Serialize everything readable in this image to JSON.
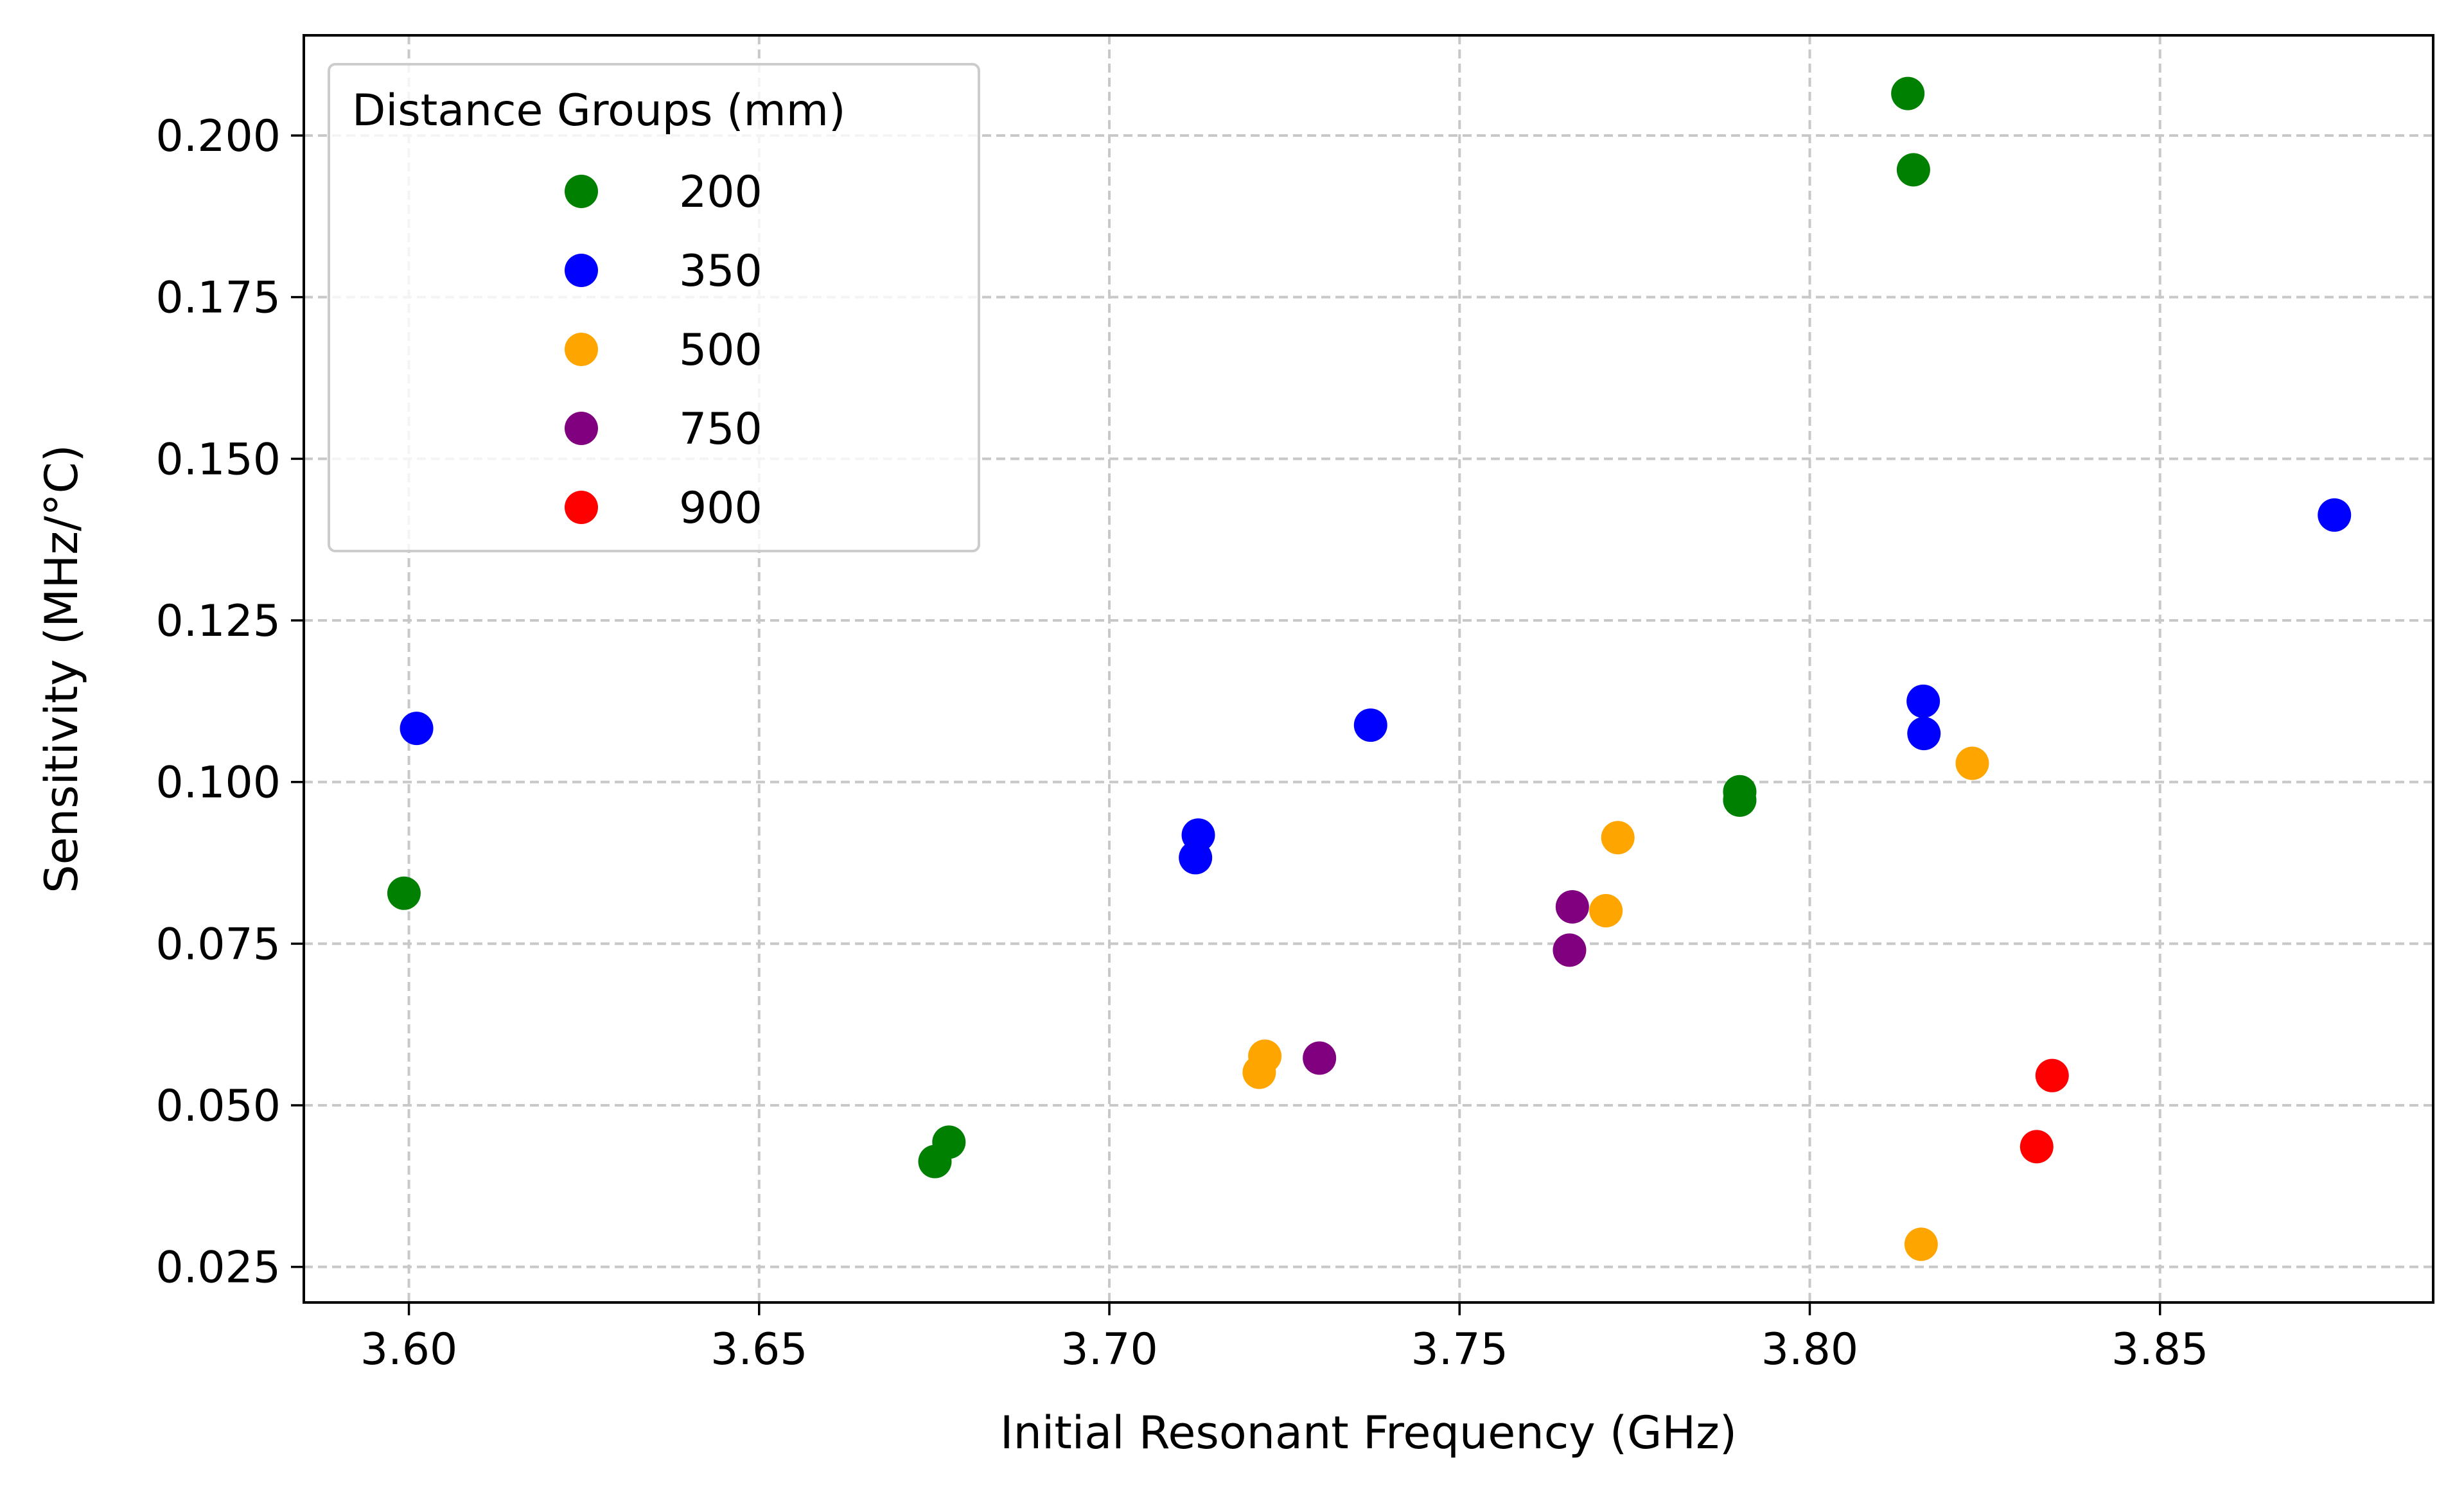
{
  "chart_data": {
    "type": "scatter",
    "xlabel": "Initial Resonant Frequency (GHz)",
    "ylabel": "Sensitivity (MHz/°C)",
    "xlim": [
      3.585,
      3.889
    ],
    "ylim": [
      0.0195,
      0.2155
    ],
    "xticks": [
      3.6,
      3.65,
      3.7,
      3.75,
      3.8,
      3.85
    ],
    "xtick_labels": [
      "3.60",
      "3.65",
      "3.70",
      "3.75",
      "3.80",
      "3.85"
    ],
    "yticks": [
      0.025,
      0.05,
      0.075,
      0.1,
      0.125,
      0.15,
      0.175,
      0.2
    ],
    "ytick_labels": [
      "0.025",
      "0.050",
      "0.075",
      "0.100",
      "0.125",
      "0.150",
      "0.175",
      "0.200"
    ],
    "grid": true,
    "legend": {
      "title": "Distance Groups (mm)",
      "placement": "top-left"
    },
    "series": [
      {
        "name": "200",
        "color": "#008000",
        "points": [
          [
            3.5993,
            0.0828
          ],
          [
            3.6751,
            0.0413
          ],
          [
            3.6771,
            0.0443
          ],
          [
            3.79,
            0.0985
          ],
          [
            3.79,
            0.0972
          ],
          [
            3.814,
            0.2065
          ],
          [
            3.8148,
            0.1947
          ]
        ]
      },
      {
        "name": "350",
        "color": "#0000ff",
        "points": [
          [
            3.6011,
            0.1083
          ],
          [
            3.7123,
            0.0883
          ],
          [
            3.7127,
            0.0918
          ],
          [
            3.7373,
            0.1088
          ],
          [
            3.8162,
            0.1125
          ],
          [
            3.8163,
            0.1075
          ],
          [
            3.8749,
            0.1413
          ]
        ]
      },
      {
        "name": "500",
        "color": "#ffa500",
        "points": [
          [
            3.7214,
            0.0551
          ],
          [
            3.7222,
            0.0576
          ],
          [
            3.7709,
            0.0801
          ],
          [
            3.7726,
            0.0914
          ],
          [
            3.8159,
            0.0285
          ],
          [
            3.8232,
            0.1029
          ]
        ]
      },
      {
        "name": "750",
        "color": "#800080",
        "points": [
          [
            3.73,
            0.0573
          ],
          [
            3.7657,
            0.074
          ],
          [
            3.7661,
            0.0807
          ]
        ]
      },
      {
        "name": "900",
        "color": "#ff0000",
        "points": [
          [
            3.8324,
            0.0436
          ],
          [
            3.8346,
            0.0546
          ]
        ]
      }
    ]
  }
}
